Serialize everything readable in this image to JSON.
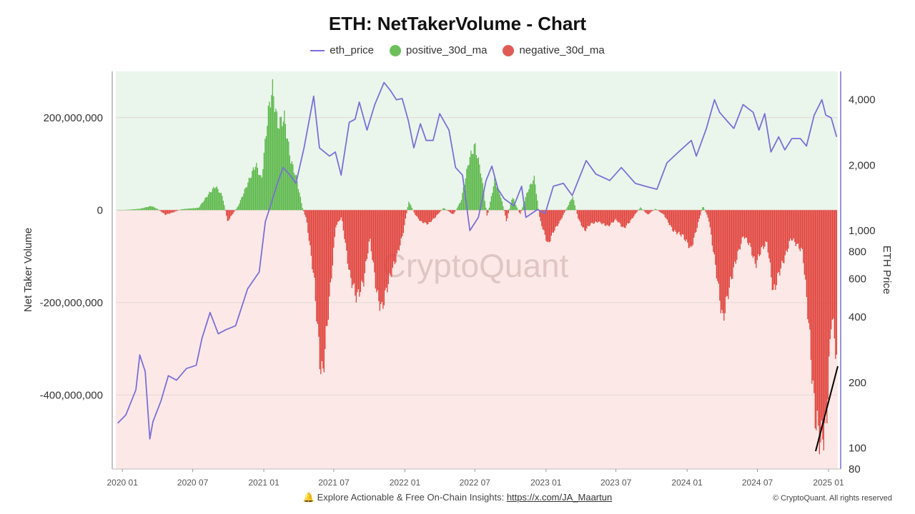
{
  "chart_data": {
    "type": "bar",
    "title": "ETH: NetTakerVolume - Chart",
    "legend": [
      {
        "name": "eth_price",
        "marker": "line",
        "color": "#7b6fd6"
      },
      {
        "name": "positive_30d_ma",
        "marker": "dot",
        "color": "#6cbf5a"
      },
      {
        "name": "negative_30d_ma",
        "marker": "dot",
        "color": "#e15b56"
      }
    ],
    "legend_position": "top-center",
    "ylabel_left": "Net Taker Volume",
    "ylabel_right": "ETH Price",
    "y_left_scale": "linear",
    "y_right_scale": "log",
    "ylim_left": [
      -560000000,
      300000000
    ],
    "ylim_right": [
      80,
      5400
    ],
    "x_range": [
      "2019-12-15",
      "2025-01-25"
    ],
    "x_ticks": [
      {
        "date": "2020-01-01",
        "label": "2020 01"
      },
      {
        "date": "2020-07-01",
        "label": "2020 07"
      },
      {
        "date": "2021-01-01",
        "label": "2021 01"
      },
      {
        "date": "2021-07-01",
        "label": "2021 07"
      },
      {
        "date": "2022-01-01",
        "label": "2022 01"
      },
      {
        "date": "2022-07-01",
        "label": "2022 07"
      },
      {
        "date": "2023-01-01",
        "label": "2023 01"
      },
      {
        "date": "2023-07-01",
        "label": "2023 07"
      },
      {
        "date": "2024-01-01",
        "label": "2024 01"
      },
      {
        "date": "2024-07-01",
        "label": "2024 07"
      },
      {
        "date": "2025-01-01",
        "label": "2025 01"
      }
    ],
    "y_left_ticks": [
      {
        "value": 200000000,
        "label": "200,000,000"
      },
      {
        "value": 0,
        "label": "0"
      },
      {
        "value": -200000000,
        "label": "-200,000,000"
      },
      {
        "value": -400000000,
        "label": "-400,000,000"
      }
    ],
    "y_right_ticks": [
      {
        "value": 4000,
        "label": "4,000"
      },
      {
        "value": 2000,
        "label": "2,000"
      },
      {
        "value": 1000,
        "label": "1,000"
      },
      {
        "value": 800,
        "label": "800"
      },
      {
        "value": 600,
        "label": "600"
      },
      {
        "value": 400,
        "label": "400"
      },
      {
        "value": 200,
        "label": "200"
      },
      {
        "value": 100,
        "label": "100"
      },
      {
        "value": 80,
        "label": "80"
      }
    ],
    "background_colors": {
      "positive_zone": "#eaf6ec",
      "negative_zone": "#fce9e7"
    },
    "grid": true,
    "net_taker_volume_30d_ma": [
      {
        "date": "2019-12-20",
        "value": 0
      },
      {
        "date": "2020-01-15",
        "value": 1000000
      },
      {
        "date": "2020-02-15",
        "value": 3000000
      },
      {
        "date": "2020-03-15",
        "value": 9000000
      },
      {
        "date": "2020-04-01",
        "value": 2000000
      },
      {
        "date": "2020-04-20",
        "value": -10000000
      },
      {
        "date": "2020-05-10",
        "value": -5000000
      },
      {
        "date": "2020-06-01",
        "value": 2000000
      },
      {
        "date": "2020-07-15",
        "value": 5000000
      },
      {
        "date": "2020-08-10",
        "value": 35000000
      },
      {
        "date": "2020-08-28",
        "value": 52000000
      },
      {
        "date": "2020-09-15",
        "value": 30000000
      },
      {
        "date": "2020-09-28",
        "value": -25000000
      },
      {
        "date": "2020-10-10",
        "value": -10000000
      },
      {
        "date": "2020-10-25",
        "value": 8000000
      },
      {
        "date": "2020-11-20",
        "value": 60000000
      },
      {
        "date": "2020-12-10",
        "value": 100000000
      },
      {
        "date": "2020-12-25",
        "value": 65000000
      },
      {
        "date": "2021-01-10",
        "value": 205000000
      },
      {
        "date": "2021-01-22",
        "value": 265000000
      },
      {
        "date": "2021-02-05",
        "value": 185000000
      },
      {
        "date": "2021-02-22",
        "value": 200000000
      },
      {
        "date": "2021-03-10",
        "value": 110000000
      },
      {
        "date": "2021-03-25",
        "value": 70000000
      },
      {
        "date": "2021-04-10",
        "value": 5000000
      },
      {
        "date": "2021-04-20",
        "value": -20000000
      },
      {
        "date": "2021-05-10",
        "value": -150000000
      },
      {
        "date": "2021-05-25",
        "value": -330000000
      },
      {
        "date": "2021-06-01",
        "value": -360000000
      },
      {
        "date": "2021-06-20",
        "value": -180000000
      },
      {
        "date": "2021-07-05",
        "value": -35000000
      },
      {
        "date": "2021-07-20",
        "value": -15000000
      },
      {
        "date": "2021-08-10",
        "value": -140000000
      },
      {
        "date": "2021-08-28",
        "value": -190000000
      },
      {
        "date": "2021-09-15",
        "value": -155000000
      },
      {
        "date": "2021-10-01",
        "value": -60000000
      },
      {
        "date": "2021-10-20",
        "value": -185000000
      },
      {
        "date": "2021-11-01",
        "value": -215000000
      },
      {
        "date": "2021-11-20",
        "value": -150000000
      },
      {
        "date": "2021-12-10",
        "value": -100000000
      },
      {
        "date": "2021-12-25",
        "value": -55000000
      },
      {
        "date": "2022-01-10",
        "value": 20000000
      },
      {
        "date": "2022-01-25",
        "value": -8000000
      },
      {
        "date": "2022-02-10",
        "value": -25000000
      },
      {
        "date": "2022-03-01",
        "value": -30000000
      },
      {
        "date": "2022-03-20",
        "value": -15000000
      },
      {
        "date": "2022-04-10",
        "value": 5000000
      },
      {
        "date": "2022-05-05",
        "value": -10000000
      },
      {
        "date": "2022-05-25",
        "value": 20000000
      },
      {
        "date": "2022-06-15",
        "value": 110000000
      },
      {
        "date": "2022-06-30",
        "value": 140000000
      },
      {
        "date": "2022-07-15",
        "value": 85000000
      },
      {
        "date": "2022-08-01",
        "value": -15000000
      },
      {
        "date": "2022-08-20",
        "value": 65000000
      },
      {
        "date": "2022-09-05",
        "value": 30000000
      },
      {
        "date": "2022-09-20",
        "value": -25000000
      },
      {
        "date": "2022-10-05",
        "value": 30000000
      },
      {
        "date": "2022-10-25",
        "value": -10000000
      },
      {
        "date": "2022-11-15",
        "value": 45000000
      },
      {
        "date": "2022-12-01",
        "value": 70000000
      },
      {
        "date": "2022-12-15",
        "value": -20000000
      },
      {
        "date": "2023-01-05",
        "value": -75000000
      },
      {
        "date": "2023-01-20",
        "value": -45000000
      },
      {
        "date": "2023-02-05",
        "value": -25000000
      },
      {
        "date": "2023-02-25",
        "value": 8000000
      },
      {
        "date": "2023-03-10",
        "value": 30000000
      },
      {
        "date": "2023-03-25",
        "value": -20000000
      },
      {
        "date": "2023-04-10",
        "value": -45000000
      },
      {
        "date": "2023-04-25",
        "value": -30000000
      },
      {
        "date": "2023-05-15",
        "value": -25000000
      },
      {
        "date": "2023-06-10",
        "value": -35000000
      },
      {
        "date": "2023-06-30",
        "value": -20000000
      },
      {
        "date": "2023-07-20",
        "value": -40000000
      },
      {
        "date": "2023-08-05",
        "value": -25000000
      },
      {
        "date": "2023-09-01",
        "value": 6000000
      },
      {
        "date": "2023-09-20",
        "value": -10000000
      },
      {
        "date": "2023-10-10",
        "value": 3000000
      },
      {
        "date": "2023-11-01",
        "value": -10000000
      },
      {
        "date": "2023-11-25",
        "value": -45000000
      },
      {
        "date": "2023-12-20",
        "value": -55000000
      },
      {
        "date": "2024-01-10",
        "value": -85000000
      },
      {
        "date": "2024-01-25",
        "value": -40000000
      },
      {
        "date": "2024-02-10",
        "value": 10000000
      },
      {
        "date": "2024-02-25",
        "value": -20000000
      },
      {
        "date": "2024-03-15",
        "value": -130000000
      },
      {
        "date": "2024-04-01",
        "value": -240000000
      },
      {
        "date": "2024-04-20",
        "value": -160000000
      },
      {
        "date": "2024-05-05",
        "value": -110000000
      },
      {
        "date": "2024-05-25",
        "value": -55000000
      },
      {
        "date": "2024-06-10",
        "value": -75000000
      },
      {
        "date": "2024-06-25",
        "value": -120000000
      },
      {
        "date": "2024-07-10",
        "value": -85000000
      },
      {
        "date": "2024-07-25",
        "value": -70000000
      },
      {
        "date": "2024-08-10",
        "value": -180000000
      },
      {
        "date": "2024-08-25",
        "value": -135000000
      },
      {
        "date": "2024-09-10",
        "value": -100000000
      },
      {
        "date": "2024-09-25",
        "value": -60000000
      },
      {
        "date": "2024-10-10",
        "value": -75000000
      },
      {
        "date": "2024-10-25",
        "value": -90000000
      },
      {
        "date": "2024-11-10",
        "value": -250000000
      },
      {
        "date": "2024-11-25",
        "value": -440000000
      },
      {
        "date": "2024-12-10",
        "value": -500000000
      },
      {
        "date": "2024-12-25",
        "value": -470000000
      },
      {
        "date": "2025-01-08",
        "value": -220000000
      },
      {
        "date": "2025-01-22",
        "value": -330000000
      }
    ],
    "eth_price": [
      {
        "date": "2019-12-20",
        "value": 130
      },
      {
        "date": "2020-01-10",
        "value": 142
      },
      {
        "date": "2020-02-05",
        "value": 185
      },
      {
        "date": "2020-02-15",
        "value": 268
      },
      {
        "date": "2020-02-29",
        "value": 225
      },
      {
        "date": "2020-03-12",
        "value": 110
      },
      {
        "date": "2020-03-20",
        "value": 132
      },
      {
        "date": "2020-04-10",
        "value": 165
      },
      {
        "date": "2020-04-29",
        "value": 215
      },
      {
        "date": "2020-05-20",
        "value": 205
      },
      {
        "date": "2020-06-15",
        "value": 232
      },
      {
        "date": "2020-07-10",
        "value": 240
      },
      {
        "date": "2020-07-25",
        "value": 320
      },
      {
        "date": "2020-08-15",
        "value": 420
      },
      {
        "date": "2020-09-05",
        "value": 335
      },
      {
        "date": "2020-09-25",
        "value": 350
      },
      {
        "date": "2020-10-20",
        "value": 365
      },
      {
        "date": "2020-11-20",
        "value": 540
      },
      {
        "date": "2020-12-20",
        "value": 645
      },
      {
        "date": "2021-01-05",
        "value": 1100
      },
      {
        "date": "2021-01-15",
        "value": 1250
      },
      {
        "date": "2021-02-05",
        "value": 1650
      },
      {
        "date": "2021-02-20",
        "value": 1950
      },
      {
        "date": "2021-03-10",
        "value": 1800
      },
      {
        "date": "2021-03-25",
        "value": 1650
      },
      {
        "date": "2021-04-15",
        "value": 2400
      },
      {
        "date": "2021-05-10",
        "value": 4150
      },
      {
        "date": "2021-05-25",
        "value": 2400
      },
      {
        "date": "2021-06-20",
        "value": 2200
      },
      {
        "date": "2021-07-05",
        "value": 2300
      },
      {
        "date": "2021-07-20",
        "value": 1800
      },
      {
        "date": "2021-08-10",
        "value": 3150
      },
      {
        "date": "2021-08-25",
        "value": 3250
      },
      {
        "date": "2021-09-05",
        "value": 3900
      },
      {
        "date": "2021-09-25",
        "value": 2900
      },
      {
        "date": "2021-10-15",
        "value": 3800
      },
      {
        "date": "2021-11-08",
        "value": 4800
      },
      {
        "date": "2021-11-25",
        "value": 4400
      },
      {
        "date": "2021-12-10",
        "value": 4000
      },
      {
        "date": "2021-12-25",
        "value": 4050
      },
      {
        "date": "2022-01-10",
        "value": 3200
      },
      {
        "date": "2022-01-24",
        "value": 2400
      },
      {
        "date": "2022-02-10",
        "value": 3100
      },
      {
        "date": "2022-02-25",
        "value": 2600
      },
      {
        "date": "2022-03-15",
        "value": 2600
      },
      {
        "date": "2022-04-01",
        "value": 3450
      },
      {
        "date": "2022-04-25",
        "value": 2900
      },
      {
        "date": "2022-05-12",
        "value": 1950
      },
      {
        "date": "2022-05-30",
        "value": 1800
      },
      {
        "date": "2022-06-18",
        "value": 1000
      },
      {
        "date": "2022-07-10",
        "value": 1150
      },
      {
        "date": "2022-07-30",
        "value": 1700
      },
      {
        "date": "2022-08-14",
        "value": 1980
      },
      {
        "date": "2022-08-30",
        "value": 1550
      },
      {
        "date": "2022-09-15",
        "value": 1400
      },
      {
        "date": "2022-10-10",
        "value": 1300
      },
      {
        "date": "2022-10-30",
        "value": 1600
      },
      {
        "date": "2022-11-10",
        "value": 1150
      },
      {
        "date": "2022-12-10",
        "value": 1250
      },
      {
        "date": "2022-12-30",
        "value": 1200
      },
      {
        "date": "2023-01-20",
        "value": 1600
      },
      {
        "date": "2023-02-15",
        "value": 1650
      },
      {
        "date": "2023-03-10",
        "value": 1450
      },
      {
        "date": "2023-04-15",
        "value": 2100
      },
      {
        "date": "2023-05-10",
        "value": 1820
      },
      {
        "date": "2023-06-15",
        "value": 1700
      },
      {
        "date": "2023-07-15",
        "value": 1950
      },
      {
        "date": "2023-08-20",
        "value": 1650
      },
      {
        "date": "2023-09-15",
        "value": 1600
      },
      {
        "date": "2023-10-15",
        "value": 1550
      },
      {
        "date": "2023-11-10",
        "value": 2050
      },
      {
        "date": "2023-12-10",
        "value": 2300
      },
      {
        "date": "2024-01-12",
        "value": 2600
      },
      {
        "date": "2024-01-25",
        "value": 2200
      },
      {
        "date": "2024-02-20",
        "value": 2950
      },
      {
        "date": "2024-03-12",
        "value": 4000
      },
      {
        "date": "2024-03-25",
        "value": 3500
      },
      {
        "date": "2024-04-20",
        "value": 3100
      },
      {
        "date": "2024-05-01",
        "value": 2950
      },
      {
        "date": "2024-05-25",
        "value": 3800
      },
      {
        "date": "2024-06-20",
        "value": 3500
      },
      {
        "date": "2024-07-05",
        "value": 2900
      },
      {
        "date": "2024-07-20",
        "value": 3450
      },
      {
        "date": "2024-08-05",
        "value": 2300
      },
      {
        "date": "2024-08-25",
        "value": 2700
      },
      {
        "date": "2024-09-10",
        "value": 2350
      },
      {
        "date": "2024-09-28",
        "value": 2650
      },
      {
        "date": "2024-10-20",
        "value": 2650
      },
      {
        "date": "2024-11-05",
        "value": 2450
      },
      {
        "date": "2024-11-25",
        "value": 3400
      },
      {
        "date": "2024-12-15",
        "value": 4000
      },
      {
        "date": "2024-12-25",
        "value": 3400
      },
      {
        "date": "2025-01-08",
        "value": 3300
      },
      {
        "date": "2025-01-22",
        "value": 2700
      }
    ]
  },
  "watermark": "CryptoQuant",
  "footer": {
    "note_text": "Explore Actionable & Free On-Chain Insights:",
    "link_text": "https://x.com/JA_Maartun",
    "copyright": "© CryptoQuant. All rights reserved"
  }
}
